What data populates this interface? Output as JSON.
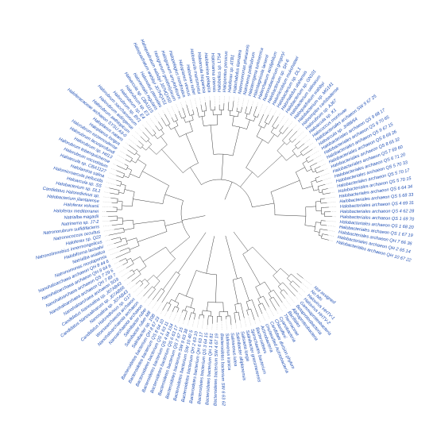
{
  "figure": {
    "label_color": "#1f4fb4",
    "branch_color": "#222222",
    "leaves": [
      "Halobacteriales archaeon QH 10 67 22",
      "Halobacteriales archaeon QH 2 65 14",
      "Halobacteriales archaeon QH 7 66 36",
      "Halobacteriales archaeon QS 1 67 19",
      "Halobacteriales archaeon QS 1 68 20",
      "Halobacteriales archaeon QS 1 69 70",
      "Halobacteriales archaeon QS 4 62 28",
      "Halobacteriales archaeon QS 4 69 31",
      "Halobacteriales archaeon QS 5 68 33",
      "Halobacteriales archaeon QS 6 64 34",
      "Halobacteriales archaeon QS 5 70 15",
      "Halobacteriales archaeon QS 5 70 17",
      "Halobacteriales archaeon QS 5 70 33",
      "Halobacteriales archaeon QS 6 71 20",
      "Halobacteriales archaeon QS 7 69 60",
      "Halobacteriales archaeon QS 8 65 32",
      "Halobacteriales archaeon QS 8 69 26",
      "Halobacteriales archaeon QS 9 67 15",
      "Halobacteriales archaeon QS 9 70 65",
      "Halobacteriales archaeon QS 9 68 17",
      "Haloarcula sp. JH88/64",
      "Halobacteriales archaeon SW 9 67 25",
      "Halococcus morrhuae",
      "Haloarcula sp. K1",
      "Halorubrum sp. AJ67",
      "Halosimplex carlsbadense",
      "Halobacterium sp. MG141",
      "Haloquadratum walsbyi",
      "Halobacterium salinarum",
      "Halobacterium sp. GN101",
      "Halorhabdus utahensis",
      "Halobacterium sp. DL1",
      "Halomicrobium mukohataei",
      "Halobacterium sp. SH-6",
      "Natronobacterium gregoryi",
      "Halarchaeum acidiphilum",
      "Halostagnicola larsenii",
      "Haloterrigena turkmenica",
      "Natrinema pellirubrum",
      "Natronomonas pharaonis",
      "Halorhabdus tiamatea",
      "Haloferax sp. ATB1",
      "Halopenitus persicus",
      "Halobellus sp. LT54",
      "Halomarina oriensis",
      "Halolamina pelagica",
      "Haloarcula hispanica",
      "Haloarcula marismortui",
      "Halovivax ruber",
      "Haloplanus vescus",
      "Halopelagius inordinatus",
      "Halogranum amylolyticum",
      "Halogranum gelatinilyticum",
      "Haloquadratum walsbyi J07HQX50",
      "Haloquadratum walsbyi J07HQX51",
      "Halonotius pteroides",
      "Halorientalis regularis",
      "Haloarcula sp. CBA1115",
      "Halorubrum sp. E3",
      "Halorubrum sp. E4",
      "Halorubrum sp. BV1",
      "Halorubrum saccharovorum",
      "Halorubrum aidingense",
      "Halorubrum aethiopicum",
      "Haloferacaceae archaeon SYSU A9-0",
      "Haloplanus natans",
      "Haloplanus longus",
      "Halorubrum ezzemoulense",
      "Halorubrum lacusprofundi",
      "Halorubrum sp. Hd13",
      "Halorubrum tebenquichense",
      "Halorubrum vacuolatum",
      "Haloarcula sp. CBA1127",
      "Halolamina salina",
      "Halomicroarcula pellucida",
      "Haloarcula sp. SS",
      "Halobacterium sp. DL1",
      "Candidatus Haloredivivus sp.",
      "Halobacterium jilantaiense",
      "Haloferax volcanii",
      "Haloferax mediterranei",
      "Natrialba magadii",
      "Natrinema sp. J7-2",
      "Natronorubrum sulfidifaciens",
      "Natronococcus occultus",
      "Haloferax sp. Q22",
      "Natronolimnobius innermongolicus",
      "Halobiforma lacisalsi",
      "Natrialba asiatica",
      "Natronomonas moolapensis",
      "Nanohaloarchaea archaeon QH 8 44 6",
      "Nanohaloarchaea archaeon QH 8 64 6",
      "Nanohaloarchaea archaeon QS 7 29 6",
      "Nanohaloarchaea archaeon QH 7 89 7",
      "Nanohaloarchaea archaeon SG9",
      "Candidatus Nanosalina sp. J07AB43",
      "Candidatus Nanosalinarum sp. J07AB56",
      "Nanosalina sp. J07AB43",
      "Candidatus Haloredivivus sp. G17",
      "Woesearchaeota archaeon",
      "Nanohaloarchaeota archaeon",
      "Nanoarchaeota archaeon",
      "Salinibacter ruber",
      "Salinibacter ruber M8",
      "Salinibacter sp. 10B",
      "Bacteroidetes bacterium QH 8 67 23",
      "Bacteroidetes bacterium QS 8 64 10",
      "Bacteroidetes bacterium QS 1 63 11",
      "Bacteroidetes bacterium QS 4 64 154",
      "Bacteroidetes bacterium QS 6 63 17",
      "Bacteroidetes bacterium QS 7 67 15",
      "Bacteroidetes bacterium SW 9 63 38",
      "Bacteroidetes bacterium SW 10 40 5",
      "Bacteroidetes bacterium QH 2 63 10",
      "Bacteroidetes bacterium QH 6 63 17",
      "Bacteroidetes bacterium QS 3 64 15",
      "Bacteroidetes bacterium QH 1 64 81",
      "Bacteroidetes bacterium SW 4 67 19",
      "Bacteroidetes bacterium SW 6 63 62",
      "Salinivenus iranica",
      "Salinivenus lutea",
      "Salinibacter altiplanensis",
      "Salisaeta longa",
      "Salinibacter grassmerensis",
      "Spirochaetes bacterium",
      "Bacteroidetes",
      "Actinobacteria",
      "Unclassified Actinobacteria",
      "Candidate division phylum",
      "Chloroflexi",
      "Cyanobacteria",
      "Thermaceae",
      "Bacillales",
      "Alphaproteobacteria",
      "Betaproteobacteria",
      "Gammaproteobacteria",
      "Halovirus HHTV-2",
      "Halovirus HHTV-1",
      "No hits",
      "Not assigned"
    ]
  }
}
